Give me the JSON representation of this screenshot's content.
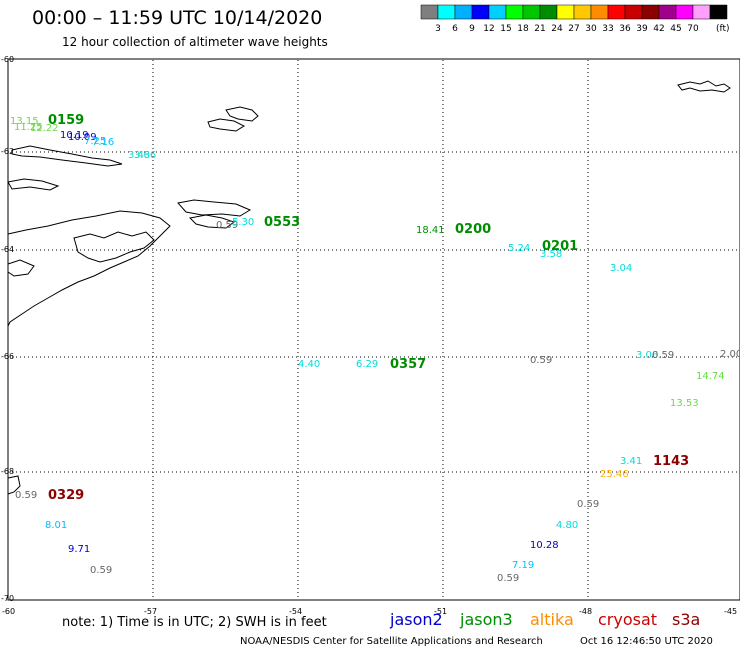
{
  "header": {
    "title": "00:00 – 11:59 UTC 10/14/2020",
    "subtitle": "12 hour collection of altimeter wave heights"
  },
  "legend": {
    "unit": "(ft)",
    "colors": [
      "#7f7f7f",
      "#00ffff",
      "#00b0ff",
      "#0000ff",
      "#00cfff",
      "#00ff00",
      "#00c800",
      "#008c00",
      "#ffff00",
      "#ffc800",
      "#ff8c00",
      "#ff0000",
      "#c80000",
      "#8c0000",
      "#a0008c",
      "#ff00ff",
      "#ffa0ff",
      "#000000"
    ],
    "labels": [
      "3",
      "6",
      "9",
      "12",
      "15",
      "18",
      "21",
      "24",
      "27",
      "30",
      "33",
      "36",
      "39",
      "42",
      "45",
      "70"
    ]
  },
  "axes": {
    "lat_labels": [
      "-60",
      "-62",
      "-64",
      "-66",
      "-68",
      "-70"
    ],
    "lon_labels": [
      "-60",
      "-57",
      "-54",
      "-51",
      "-48",
      "-45"
    ]
  },
  "observations": [
    {
      "text": "13.15",
      "color": "#66dd44"
    },
    {
      "text": "0159",
      "color": "#008c00",
      "bold": true
    },
    {
      "text": "11.25",
      "color": "#66dd44"
    },
    {
      "text": "12.22",
      "color": "#66dd44"
    },
    {
      "text": "10.19",
      "color": "#0000cc"
    },
    {
      "text": "10.09",
      "color": "#0000cc"
    },
    {
      "text": "7.25",
      "color": "#00bfff"
    },
    {
      "text": "7.16",
      "color": "#00bfff"
    },
    {
      "text": "3.43",
      "color": "#00dddd"
    },
    {
      "text": "3.66",
      "color": "#00dddd"
    },
    {
      "text": "0.59",
      "color": "#666666"
    },
    {
      "text": "5.30",
      "color": "#00dddd"
    },
    {
      "text": "0553",
      "color": "#008c00",
      "bold": true
    },
    {
      "text": "18.41",
      "color": "#008c00"
    },
    {
      "text": "0200",
      "color": "#008c00",
      "bold": true
    },
    {
      "text": "5.24",
      "color": "#00dddd"
    },
    {
      "text": "0201",
      "color": "#008c00",
      "bold": true
    },
    {
      "text": "3.58",
      "color": "#00dddd"
    },
    {
      "text": "3.04",
      "color": "#00dddd"
    },
    {
      "text": "4.40",
      "color": "#00dddd"
    },
    {
      "text": "6.29",
      "color": "#00dddd"
    },
    {
      "text": "0357",
      "color": "#008c00",
      "bold": true
    },
    {
      "text": "0.59",
      "color": "#666666"
    },
    {
      "text": "3.06",
      "color": "#00dddd"
    },
    {
      "text": "0.59",
      "color": "#666666"
    },
    {
      "text": "2.00",
      "color": "#666666"
    },
    {
      "text": "14.74",
      "color": "#66dd44"
    },
    {
      "text": "13.53",
      "color": "#66dd44"
    },
    {
      "text": "3.41",
      "color": "#00dddd"
    },
    {
      "text": "1143",
      "color": "#8c0000",
      "bold": true
    },
    {
      "text": "25.46",
      "color": "#ffb000"
    },
    {
      "text": "0.59",
      "color": "#666666"
    },
    {
      "text": "0329",
      "color": "#8c0000",
      "bold": true
    },
    {
      "text": "0.59",
      "color": "#666666"
    },
    {
      "text": "4.80",
      "color": "#00dddd"
    },
    {
      "text": "8.01",
      "color": "#00bfff"
    },
    {
      "text": "9.71",
      "color": "#0000cc"
    },
    {
      "text": "10.28",
      "color": "#0000cc"
    },
    {
      "text": "7.19",
      "color": "#00bfff"
    },
    {
      "text": "0.59",
      "color": "#666666"
    },
    {
      "text": "0.59",
      "color": "#666666"
    }
  ],
  "footer": {
    "note": "note:  1) Time is in UTC;  2) SWH is in feet",
    "satellites": [
      {
        "name": "jason2",
        "color": "#0000cc"
      },
      {
        "name": "jason3",
        "color": "#008c00"
      },
      {
        "name": "altika",
        "color": "#ff8c00"
      },
      {
        "name": "cryosat",
        "color": "#cc0000"
      },
      {
        "name": "s3a",
        "color": "#8c0000"
      }
    ],
    "credit": "NOAA/NESDIS Center for Satellite Applications and Research",
    "timestamp": "Oct 16 12:46:50 UTC 2020"
  }
}
